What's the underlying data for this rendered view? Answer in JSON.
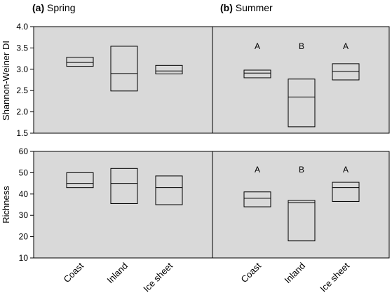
{
  "chart_data": [
    {
      "type": "box",
      "panel": "(a) Spring",
      "title_tag": "(a)",
      "title_text": "Spring",
      "ylabel": "Shannon-Weiner DI",
      "ylim": [
        1.5,
        4.0
      ],
      "yticks": [
        "1.5",
        "2.0",
        "2.5",
        "3.0",
        "3.5",
        "4.0"
      ],
      "categories": [
        "Coast",
        "Inland",
        "Ice sheet"
      ],
      "boxes": [
        {
          "category": "Coast",
          "q1": 3.07,
          "median": 3.16,
          "q3": 3.28
        },
        {
          "category": "Inland",
          "q1": 2.49,
          "median": 2.9,
          "q3": 3.54
        },
        {
          "category": "Ice sheet",
          "q1": 2.89,
          "median": 2.96,
          "q3": 3.09
        }
      ],
      "letters": []
    },
    {
      "type": "box",
      "panel": "(b) Summer",
      "title_tag": "(b)",
      "title_text": "Summer",
      "ylabel": "",
      "ylim": [
        1.5,
        4.0
      ],
      "yticks": [],
      "categories": [
        "Coast",
        "Inland",
        "Ice sheet"
      ],
      "boxes": [
        {
          "category": "Coast",
          "q1": 2.8,
          "median": 2.91,
          "q3": 2.98
        },
        {
          "category": "Inland",
          "q1": 1.65,
          "median": 2.35,
          "q3": 2.77
        },
        {
          "category": "Ice sheet",
          "q1": 2.75,
          "median": 2.95,
          "q3": 3.13
        }
      ],
      "letters": [
        "A",
        "B",
        "A"
      ]
    },
    {
      "type": "box",
      "panel": "",
      "ylabel": "Richness",
      "ylim": [
        10,
        60
      ],
      "yticks": [
        "10",
        "20",
        "30",
        "40",
        "50",
        "60"
      ],
      "categories": [
        "Coast",
        "Inland",
        "Ice sheet"
      ],
      "boxes": [
        {
          "category": "Coast",
          "q1": 43,
          "median": 45,
          "q3": 50
        },
        {
          "category": "Inland",
          "q1": 35.5,
          "median": 45,
          "q3": 52
        },
        {
          "category": "Ice sheet",
          "q1": 35,
          "median": 43,
          "q3": 48.5
        }
      ],
      "letters": []
    },
    {
      "type": "box",
      "panel": "",
      "ylabel": "",
      "ylim": [
        10,
        60
      ],
      "yticks": [],
      "categories": [
        "Coast",
        "Inland",
        "Ice sheet"
      ],
      "boxes": [
        {
          "category": "Coast",
          "q1": 34,
          "median": 38,
          "q3": 41
        },
        {
          "category": "Inland",
          "q1": 18,
          "median": 36,
          "q3": 37
        },
        {
          "category": "Ice sheet",
          "q1": 36.5,
          "median": 43,
          "q3": 45.5
        }
      ],
      "letters": [
        "A",
        "B",
        "A"
      ]
    }
  ]
}
